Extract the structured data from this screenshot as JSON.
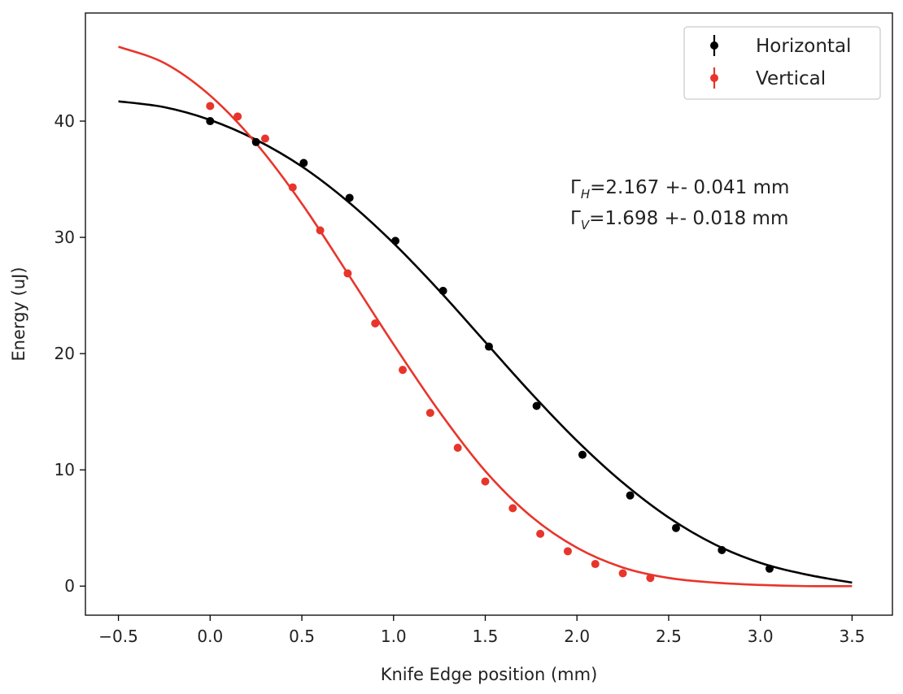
{
  "chart_data": {
    "type": "scatter",
    "title": "",
    "xlabel": "Knife Edge position (mm)",
    "ylabel": "Energy (uJ)",
    "xlim": [
      -0.68,
      3.72
    ],
    "ylim": [
      -2.5,
      49.3
    ],
    "xticks": [
      -0.5,
      0.0,
      0.5,
      1.0,
      1.5,
      2.0,
      2.5,
      3.0,
      3.5
    ],
    "xtick_labels": [
      "−0.5",
      "0.0",
      "0.5",
      "1.0",
      "1.5",
      "2.0",
      "2.5",
      "3.0",
      "3.5"
    ],
    "yticks": [
      0,
      10,
      20,
      30,
      40
    ],
    "ytick_labels": [
      "0",
      "10",
      "20",
      "30",
      "40"
    ],
    "grid": false,
    "legend_position": "top-right",
    "series": [
      {
        "name": "Horizontal",
        "color": "#000000",
        "points": [
          {
            "x": 0.0,
            "y": 40.0
          },
          {
            "x": 0.25,
            "y": 38.2
          },
          {
            "x": 0.51,
            "y": 36.4
          },
          {
            "x": 0.76,
            "y": 33.4
          },
          {
            "x": 1.01,
            "y": 29.7
          },
          {
            "x": 1.27,
            "y": 25.4
          },
          {
            "x": 1.52,
            "y": 20.6
          },
          {
            "x": 1.78,
            "y": 15.5
          },
          {
            "x": 2.03,
            "y": 11.3
          },
          {
            "x": 2.29,
            "y": 7.8
          },
          {
            "x": 2.54,
            "y": 5.0
          },
          {
            "x": 2.79,
            "y": 3.1
          },
          {
            "x": 3.05,
            "y": 1.5
          }
        ],
        "fit": {
          "x": [
            -0.5,
            -0.25,
            0.0,
            0.25,
            0.5,
            0.75,
            1.0,
            1.25,
            1.5,
            1.75,
            2.0,
            2.25,
            2.5,
            2.75,
            3.0,
            3.25,
            3.5
          ],
          "y": [
            41.7,
            41.2,
            40.1,
            38.4,
            36.1,
            33.1,
            29.5,
            25.4,
            21.0,
            16.6,
            12.5,
            8.9,
            5.9,
            3.6,
            2.0,
            1.0,
            0.3
          ]
        }
      },
      {
        "name": "Vertical",
        "color": "#e8352b",
        "points": [
          {
            "x": 0.0,
            "y": 41.3
          },
          {
            "x": 0.15,
            "y": 40.4
          },
          {
            "x": 0.3,
            "y": 38.5
          },
          {
            "x": 0.45,
            "y": 34.3
          },
          {
            "x": 0.6,
            "y": 30.6
          },
          {
            "x": 0.75,
            "y": 26.9
          },
          {
            "x": 0.9,
            "y": 22.6
          },
          {
            "x": 1.05,
            "y": 18.6
          },
          {
            "x": 1.2,
            "y": 14.9
          },
          {
            "x": 1.35,
            "y": 11.9
          },
          {
            "x": 1.5,
            "y": 9.0
          },
          {
            "x": 1.65,
            "y": 6.7
          },
          {
            "x": 1.8,
            "y": 4.5
          },
          {
            "x": 1.95,
            "y": 3.0
          },
          {
            "x": 2.1,
            "y": 1.9
          },
          {
            "x": 2.25,
            "y": 1.1
          },
          {
            "x": 2.4,
            "y": 0.7
          }
        ],
        "fit": {
          "x": [
            -0.5,
            -0.25,
            0.0,
            0.25,
            0.5,
            0.75,
            1.0,
            1.25,
            1.5,
            1.75,
            2.0,
            2.25,
            2.5,
            2.75,
            3.0,
            3.25,
            3.5
          ],
          "y": [
            46.4,
            45.0,
            42.2,
            38.1,
            32.9,
            26.9,
            20.8,
            15.0,
            9.9,
            6.0,
            3.3,
            1.6,
            0.7,
            0.3,
            0.1,
            0.0,
            0.0
          ]
        }
      }
    ],
    "annotations": [
      {
        "symbol": "Γ",
        "sub": "H",
        "text": "=2.167 +- 0.041 mm"
      },
      {
        "symbol": "Γ",
        "sub": "V",
        "text": "=1.698 +- 0.018 mm"
      }
    ]
  }
}
